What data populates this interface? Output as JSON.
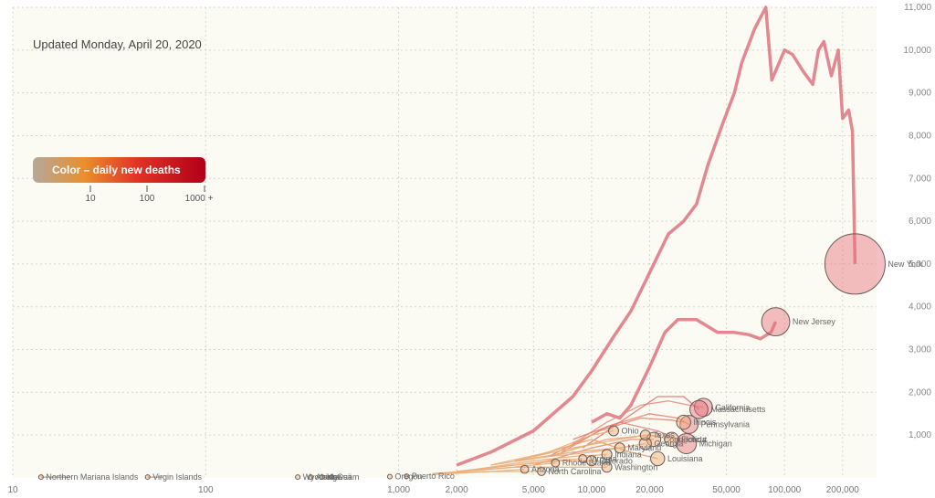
{
  "updated": "Updated Monday, April 20, 2020",
  "legend": {
    "title": "Color – daily new deaths",
    "ticks": [
      "10",
      "100",
      "1000 +"
    ],
    "colors": [
      "#b5a89a",
      "#e98f2c",
      "#e23325",
      "#b00018"
    ]
  },
  "chart_data": {
    "type": "scatter",
    "x_scale": "log",
    "x_ticks": [
      "10",
      "100",
      "1,000",
      "2,000",
      "5,000",
      "10,000",
      "20,000",
      "50,000",
      "100,000",
      "200,000"
    ],
    "y_ticks": [
      "1,000",
      "2,000",
      "3,000",
      "4,000",
      "5,000",
      "6,000",
      "7,000",
      "8,000",
      "9,000",
      "10,000",
      "11,000"
    ],
    "xlim": [
      10,
      300000
    ],
    "ylim": [
      0,
      11000
    ],
    "grid": true,
    "series": [
      {
        "name": "New York",
        "color": "#e07a85",
        "points": [
          [
            2000,
            300
          ],
          [
            3000,
            600
          ],
          [
            5000,
            1100
          ],
          [
            8000,
            1900
          ],
          [
            10000,
            2500
          ],
          [
            13000,
            3300
          ],
          [
            16000,
            3900
          ],
          [
            20000,
            4800
          ],
          [
            25000,
            5700
          ],
          [
            30000,
            6000
          ],
          [
            35000,
            6400
          ],
          [
            40000,
            7300
          ],
          [
            48000,
            8300
          ],
          [
            55000,
            9000
          ],
          [
            60000,
            9700
          ],
          [
            70000,
            10500
          ],
          [
            80000,
            11000
          ],
          [
            86000,
            9300
          ],
          [
            100000,
            10000
          ],
          [
            110000,
            9900
          ],
          [
            125000,
            9500
          ],
          [
            140000,
            9200
          ],
          [
            150000,
            10000
          ],
          [
            160000,
            10200
          ],
          [
            175000,
            9400
          ],
          [
            190000,
            10000
          ],
          [
            200000,
            8400
          ],
          [
            215000,
            8600
          ],
          [
            225000,
            8100
          ],
          [
            232000,
            5000
          ]
        ]
      },
      {
        "name": "New Jersey",
        "color": "#e07a85",
        "points": [
          [
            10000,
            1300
          ],
          [
            12000,
            1500
          ],
          [
            14000,
            1400
          ],
          [
            16000,
            1700
          ],
          [
            20000,
            2600
          ],
          [
            24000,
            3400
          ],
          [
            28000,
            3700
          ],
          [
            35000,
            3700
          ],
          [
            45000,
            3400
          ],
          [
            55000,
            3400
          ],
          [
            65000,
            3350
          ],
          [
            75000,
            3250
          ],
          [
            85000,
            3400
          ],
          [
            90000,
            3650
          ]
        ]
      },
      {
        "name": "California",
        "color": "#e98f7d",
        "points": [
          [
            8000,
            800
          ],
          [
            12000,
            1300
          ],
          [
            18000,
            1700
          ],
          [
            25000,
            1800
          ],
          [
            32000,
            1700
          ],
          [
            38000,
            1650
          ]
        ]
      },
      {
        "name": "Massachusetts",
        "color": "#e8706a",
        "points": [
          [
            9000,
            700
          ],
          [
            14000,
            1300
          ],
          [
            22000,
            1900
          ],
          [
            30000,
            1900
          ],
          [
            36000,
            1600
          ]
        ]
      },
      {
        "name": "Pennsylvania",
        "color": "#e98670",
        "points": [
          [
            7000,
            600
          ],
          [
            12000,
            1200
          ],
          [
            20000,
            1500
          ],
          [
            28000,
            1400
          ],
          [
            32000,
            1250
          ]
        ]
      },
      {
        "name": "Illinois",
        "color": "#e98670",
        "points": [
          [
            6000,
            500
          ],
          [
            11000,
            1100
          ],
          [
            18000,
            1400
          ],
          [
            26000,
            1350
          ],
          [
            30000,
            1300
          ]
        ]
      },
      {
        "name": "Michigan",
        "color": "#e5807a",
        "points": [
          [
            8000,
            900
          ],
          [
            14000,
            1300
          ],
          [
            22000,
            1100
          ],
          [
            28000,
            900
          ],
          [
            31000,
            800
          ]
        ]
      },
      {
        "name": "Florida",
        "color": "#e9a06d",
        "points": [
          [
            6000,
            500
          ],
          [
            12000,
            900
          ],
          [
            20000,
            1000
          ],
          [
            26000,
            900
          ]
        ]
      },
      {
        "name": "Connecticut",
        "color": "#e98670",
        "points": [
          [
            5000,
            300
          ],
          [
            10000,
            700
          ],
          [
            16000,
            900
          ],
          [
            21000,
            900
          ]
        ]
      },
      {
        "name": "Louisiana",
        "color": "#e9a06d",
        "points": [
          [
            5000,
            500
          ],
          [
            10000,
            900
          ],
          [
            16000,
            600
          ],
          [
            22000,
            450
          ]
        ]
      },
      {
        "name": "Georgia",
        "color": "#e9a77a",
        "points": [
          [
            4000,
            400
          ],
          [
            8000,
            600
          ],
          [
            14000,
            700
          ],
          [
            19000,
            800
          ]
        ]
      },
      {
        "name": "Texas",
        "color": "#ebae7a",
        "points": [
          [
            4000,
            400
          ],
          [
            8000,
            700
          ],
          [
            14000,
            900
          ],
          [
            19000,
            1000
          ]
        ]
      },
      {
        "name": "Ohio",
        "color": "#ebae7a",
        "points": [
          [
            3000,
            300
          ],
          [
            6000,
            600
          ],
          [
            10000,
            1000
          ],
          [
            13000,
            1100
          ]
        ]
      },
      {
        "name": "Maryland",
        "color": "#ebae7a",
        "points": [
          [
            3000,
            300
          ],
          [
            6000,
            500
          ],
          [
            10000,
            600
          ],
          [
            14000,
            700
          ]
        ]
      },
      {
        "name": "Indiana",
        "color": "#ebae7a",
        "points": [
          [
            2500,
            200
          ],
          [
            5000,
            400
          ],
          [
            8000,
            500
          ],
          [
            12000,
            550
          ]
        ]
      },
      {
        "name": "Washington",
        "color": "#ebae7a",
        "points": [
          [
            2000,
            150
          ],
          [
            4000,
            250
          ],
          [
            8000,
            250
          ],
          [
            12000,
            250
          ]
        ]
      },
      {
        "name": "Colorado",
        "color": "#ebae7a",
        "points": [
          [
            2000,
            150
          ],
          [
            4000,
            300
          ],
          [
            7000,
            400
          ],
          [
            10000,
            400
          ]
        ]
      },
      {
        "name": "Virginia",
        "color": "#ebae7a",
        "points": [
          [
            2000,
            150
          ],
          [
            4000,
            300
          ],
          [
            6000,
            400
          ],
          [
            9000,
            450
          ]
        ]
      },
      {
        "name": "Rhode Island",
        "color": "#ebae7a",
        "points": [
          [
            1500,
            100
          ],
          [
            3000,
            200
          ],
          [
            5000,
            300
          ],
          [
            6500,
            350
          ]
        ]
      },
      {
        "name": "Arizona",
        "color": "#ebae7a",
        "points": [
          [
            1500,
            100
          ],
          [
            3000,
            150
          ],
          [
            4500,
            200
          ]
        ]
      },
      {
        "name": "North Carolina",
        "color": "#ebae7a",
        "points": [
          [
            1500,
            80
          ],
          [
            3000,
            150
          ],
          [
            5500,
            150
          ]
        ]
      },
      {
        "name": "Northern Mariana Islands",
        "color": "#a99a8a",
        "points": [
          [
            14,
            20
          ],
          [
            20,
            20
          ]
        ]
      },
      {
        "name": "Virgin Islands",
        "color": "#a99a8a",
        "points": [
          [
            50,
            20
          ],
          [
            60,
            20
          ]
        ]
      }
    ],
    "annotations": [
      {
        "text": "New York",
        "x": 232000,
        "y": 5000,
        "r": 3
      },
      {
        "text": "New Jersey",
        "x": 90000,
        "y": 3650,
        "r": 1.4
      },
      {
        "text": "California",
        "x": 38000,
        "y": 1650,
        "r": 0.9
      },
      {
        "text": "Massachusetts",
        "x": 36000,
        "y": 1600,
        "r": 0.9
      },
      {
        "text": "Pennsylvania",
        "x": 32000,
        "y": 1250,
        "r": 0.9
      },
      {
        "text": "Illinois",
        "x": 30000,
        "y": 1300,
        "r": 0.7
      },
      {
        "text": "Michigan",
        "x": 31000,
        "y": 800,
        "r": 1
      },
      {
        "text": "Florida",
        "x": 26000,
        "y": 900,
        "r": 0.7
      },
      {
        "text": "Connecticut",
        "x": 21000,
        "y": 900,
        "r": 0.7
      },
      {
        "text": "Louisiana",
        "x": 22000,
        "y": 450,
        "r": 0.7
      },
      {
        "text": "Georgia",
        "x": 19000,
        "y": 800,
        "r": 0.6
      },
      {
        "text": "Texas",
        "x": 19000,
        "y": 1000,
        "r": 0.5
      },
      {
        "text": "Ohio",
        "x": 13000,
        "y": 1100,
        "r": 0.5
      },
      {
        "text": "Maryland",
        "x": 14000,
        "y": 700,
        "r": 0.5
      },
      {
        "text": "Indiana",
        "x": 12000,
        "y": 550,
        "r": 0.5
      },
      {
        "text": "Washington",
        "x": 12000,
        "y": 250,
        "r": 0.5
      },
      {
        "text": "Colorado",
        "x": 10000,
        "y": 400,
        "r": 0.5
      },
      {
        "text": "Virginia",
        "x": 9000,
        "y": 450,
        "r": 0.4
      },
      {
        "text": "Rhode Island",
        "x": 6500,
        "y": 350,
        "r": 0.4
      },
      {
        "text": "Arizona",
        "x": 4500,
        "y": 200,
        "r": 0.4
      },
      {
        "text": "North Carolina",
        "x": 5500,
        "y": 150,
        "r": 0.4
      },
      {
        "text": "Northern Mariana Islands",
        "x": 14,
        "y": 20,
        "r": 0.1
      },
      {
        "text": "Virgin Islands",
        "x": 50,
        "y": 20,
        "r": 0.1
      },
      {
        "text": "Wyoming",
        "x": 300,
        "y": 20,
        "r": 0.1
      },
      {
        "text": "Hawaii",
        "x": 400,
        "y": 20,
        "r": 0.1
      },
      {
        "text": "Guam",
        "x": 450,
        "y": 20,
        "r": 0.1
      },
      {
        "text": "Alaska",
        "x": 350,
        "y": 20,
        "r": 0.1
      },
      {
        "text": "Oregon",
        "x": 900,
        "y": 30,
        "r": 0.2
      },
      {
        "text": "Puerto Rico",
        "x": 1100,
        "y": 40,
        "r": 0.2
      }
    ]
  }
}
